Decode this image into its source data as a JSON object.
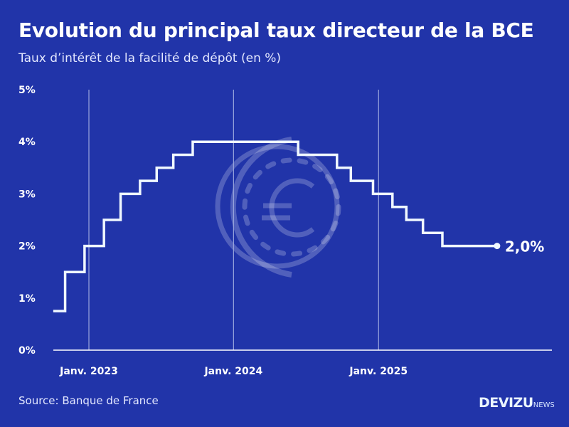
{
  "header": {
    "title": "Evolution du principal taux directeur de la BCE",
    "subtitle": "Taux d’intérêt de la facilité de dépôt (en %)"
  },
  "footer": {
    "source": "Source: Banque de France",
    "logo_main": "DEVIZU",
    "logo_sub": "NEWS"
  },
  "colors": {
    "background": "#2134a9",
    "line": "#f0f8ff",
    "grid": "#9aa6dd"
  },
  "watermark_icon": "euro-coin-icon",
  "chart_data": {
    "type": "line",
    "step": true,
    "title": "Evolution du principal taux directeur de la BCE",
    "subtitle": "Taux d’intérêt de la facilité de dépôt (en %)",
    "xlabel": "",
    "ylabel": "",
    "ylim": [
      0,
      5
    ],
    "yticks": [
      0,
      1,
      2,
      3,
      4,
      5
    ],
    "ytick_labels": [
      "0%",
      "1%",
      "2%",
      "3%",
      "4%",
      "5%"
    ],
    "xticks": [
      "2023-01-01",
      "2024-01-01",
      "2025-01-01"
    ],
    "xtick_labels": [
      "Janv. 2023",
      "Janv. 2024",
      "Janv. 2025"
    ],
    "grid": "vertical lines at x ticks",
    "points": [
      {
        "date": "2022-10-03",
        "value": 0.75
      },
      {
        "date": "2022-11-02",
        "value": 1.5
      },
      {
        "date": "2022-12-21",
        "value": 2.0
      },
      {
        "date": "2023-02-08",
        "value": 2.5
      },
      {
        "date": "2023-03-22",
        "value": 3.0
      },
      {
        "date": "2023-05-10",
        "value": 3.25
      },
      {
        "date": "2023-06-21",
        "value": 3.5
      },
      {
        "date": "2023-08-02",
        "value": 3.75
      },
      {
        "date": "2023-09-20",
        "value": 4.0
      },
      {
        "date": "2024-06-12",
        "value": 3.75
      },
      {
        "date": "2024-09-18",
        "value": 3.5
      },
      {
        "date": "2024-10-23",
        "value": 3.25
      },
      {
        "date": "2024-12-18",
        "value": 3.0
      },
      {
        "date": "2025-02-05",
        "value": 2.75
      },
      {
        "date": "2025-03-12",
        "value": 2.5
      },
      {
        "date": "2025-04-23",
        "value": 2.25
      },
      {
        "date": "2025-06-11",
        "value": 2.0
      }
    ],
    "end_date": "2025-10-27",
    "end_label": "2,0%"
  }
}
